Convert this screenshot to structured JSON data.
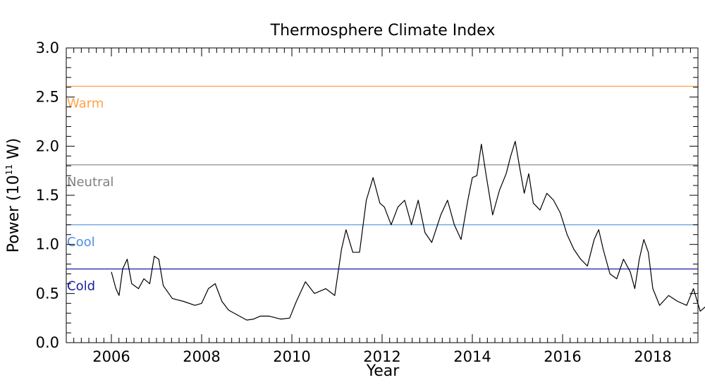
{
  "chart_data": {
    "type": "line",
    "title": "Thermosphere Climate Index",
    "xlabel": "Year",
    "ylabel_main": "Power (10",
    "ylabel_exp": "11",
    "ylabel_unit": " W)",
    "xlim": [
      2005.0,
      2019.0
    ],
    "ylim": [
      0.0,
      3.0
    ],
    "x_ticks": [
      2006,
      2008,
      2010,
      2012,
      2014,
      2016,
      2018
    ],
    "x_tick_labels": [
      "2006",
      "2008",
      "2010",
      "2012",
      "2014",
      "2016",
      "2018"
    ],
    "y_ticks": [
      0.0,
      0.5,
      1.0,
      1.5,
      2.0,
      2.5,
      3.0
    ],
    "y_tick_labels": [
      "0.0",
      "0.5",
      "1.0",
      "1.5",
      "2.0",
      "2.5",
      "3.0"
    ],
    "grid": false,
    "thresholds": [
      {
        "label": "Warm",
        "value": 2.61,
        "color": "#ffa347"
      },
      {
        "label": "Neutral",
        "value": 1.81,
        "color": "#808080"
      },
      {
        "label": "Cool",
        "value": 1.2,
        "color": "#4d8fe0"
      },
      {
        "label": "Cold",
        "value": 0.75,
        "color": "#1a1aa6"
      }
    ],
    "series": [
      {
        "color": "#000000",
        "x": [
          2006.0,
          2006.1,
          2006.17,
          2006.25,
          2006.35,
          2006.45,
          2006.6,
          2006.72,
          2006.85,
          2006.95,
          2007.05,
          2007.15,
          2007.35,
          2007.6,
          2007.85,
          2008.0,
          2008.15,
          2008.3,
          2008.45,
          2008.6,
          2008.8,
          2009.0,
          2009.15,
          2009.3,
          2009.5,
          2009.75,
          2009.95,
          2010.1,
          2010.3,
          2010.5,
          2010.75,
          2010.95,
          2011.1,
          2011.2,
          2011.35,
          2011.5,
          2011.65,
          2011.8,
          2011.95,
          2012.05,
          2012.2,
          2012.35,
          2012.5,
          2012.65,
          2012.8,
          2012.95,
          2013.1,
          2013.3,
          2013.45,
          2013.6,
          2013.75,
          2013.9,
          2014.0,
          2014.1,
          2014.2,
          2014.3,
          2014.45,
          2014.6,
          2014.75,
          2014.85,
          2014.95,
          2015.05,
          2015.15,
          2015.25,
          2015.35,
          2015.5,
          2015.65,
          2015.8,
          2015.95,
          2016.1,
          2016.25,
          2016.4,
          2016.55,
          2016.7,
          2016.8,
          2016.9,
          2017.05,
          2017.2,
          2017.35,
          2017.5,
          2017.6,
          2017.7,
          2017.8,
          2017.9,
          2018.0,
          2018.15,
          2018.35,
          2018.55,
          2018.75,
          2018.9,
          2019.05,
          2019.2,
          2019.35,
          2019.5
        ],
        "y": [
          0.72,
          0.55,
          0.48,
          0.75,
          0.85,
          0.6,
          0.55,
          0.65,
          0.6,
          0.88,
          0.85,
          0.58,
          0.45,
          0.42,
          0.38,
          0.4,
          0.55,
          0.6,
          0.42,
          0.33,
          0.28,
          0.23,
          0.24,
          0.27,
          0.27,
          0.24,
          0.25,
          0.42,
          0.62,
          0.5,
          0.55,
          0.48,
          0.95,
          1.15,
          0.92,
          0.92,
          1.45,
          1.68,
          1.42,
          1.38,
          1.2,
          1.38,
          1.45,
          1.2,
          1.45,
          1.12,
          1.02,
          1.3,
          1.45,
          1.2,
          1.05,
          1.45,
          1.68,
          1.7,
          2.02,
          1.72,
          1.3,
          1.55,
          1.72,
          1.9,
          2.05,
          1.78,
          1.52,
          1.72,
          1.42,
          1.35,
          1.52,
          1.45,
          1.32,
          1.1,
          0.95,
          0.85,
          0.78,
          1.05,
          1.15,
          0.95,
          0.7,
          0.65,
          0.85,
          0.72,
          0.55,
          0.85,
          1.05,
          0.92,
          0.55,
          0.38,
          0.48,
          0.42,
          0.38,
          0.55,
          0.32,
          0.38,
          0.44,
          0.4
        ]
      }
    ]
  }
}
